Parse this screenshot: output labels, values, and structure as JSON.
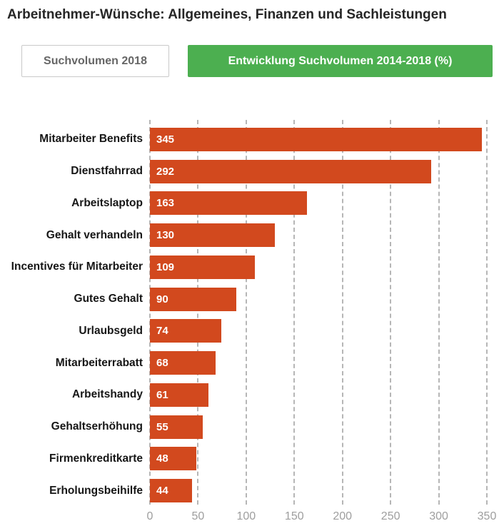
{
  "title": "Arbeitnehmer-Wünsche: Allgemeines, Finanzen und Sachleistungen",
  "tabs": [
    {
      "label": "Suchvolumen 2018",
      "active": false
    },
    {
      "label": "Entwicklung Suchvolumen 2014-2018 (%)",
      "active": true
    }
  ],
  "colors": {
    "bar": "#d2491e",
    "active_tab": "#4caf50",
    "inactive_tab_border": "#c9c9c9",
    "inactive_tab_text": "#666666",
    "gridline": "#b6b6b6",
    "tick_label": "#9e9e9e",
    "category_label": "#161616",
    "value_label": "#ffffff"
  },
  "chart_data": {
    "type": "bar",
    "orientation": "horizontal",
    "title": "Arbeitnehmer-Wünsche: Allgemeines, Finanzen und Sachleistungen",
    "subtitle": "Entwicklung Suchvolumen 2014-2018 (%)",
    "categories": [
      "Mitarbeiter Benefits",
      "Dienstfahrrad",
      "Arbeitslaptop",
      "Gehalt verhandeln",
      "Incentives für Mitarbeiter",
      "Gutes Gehalt",
      "Urlaubsgeld",
      "Mitarbeiterrabatt",
      "Arbeitshandy",
      "Gehaltserhöhung",
      "Firmenkreditkarte",
      "Erholungsbeihilfe"
    ],
    "values": [
      345,
      292,
      163,
      130,
      109,
      90,
      74,
      68,
      61,
      55,
      48,
      44
    ],
    "xlabel": "",
    "ylabel": "",
    "xlim": [
      0,
      350
    ],
    "x_ticks": [
      0,
      50,
      100,
      150,
      200,
      250,
      300,
      350
    ],
    "grid": "vertical-dashed",
    "legend": "none",
    "value_labels": "inside-start",
    "bar_color": "#d2491e"
  }
}
